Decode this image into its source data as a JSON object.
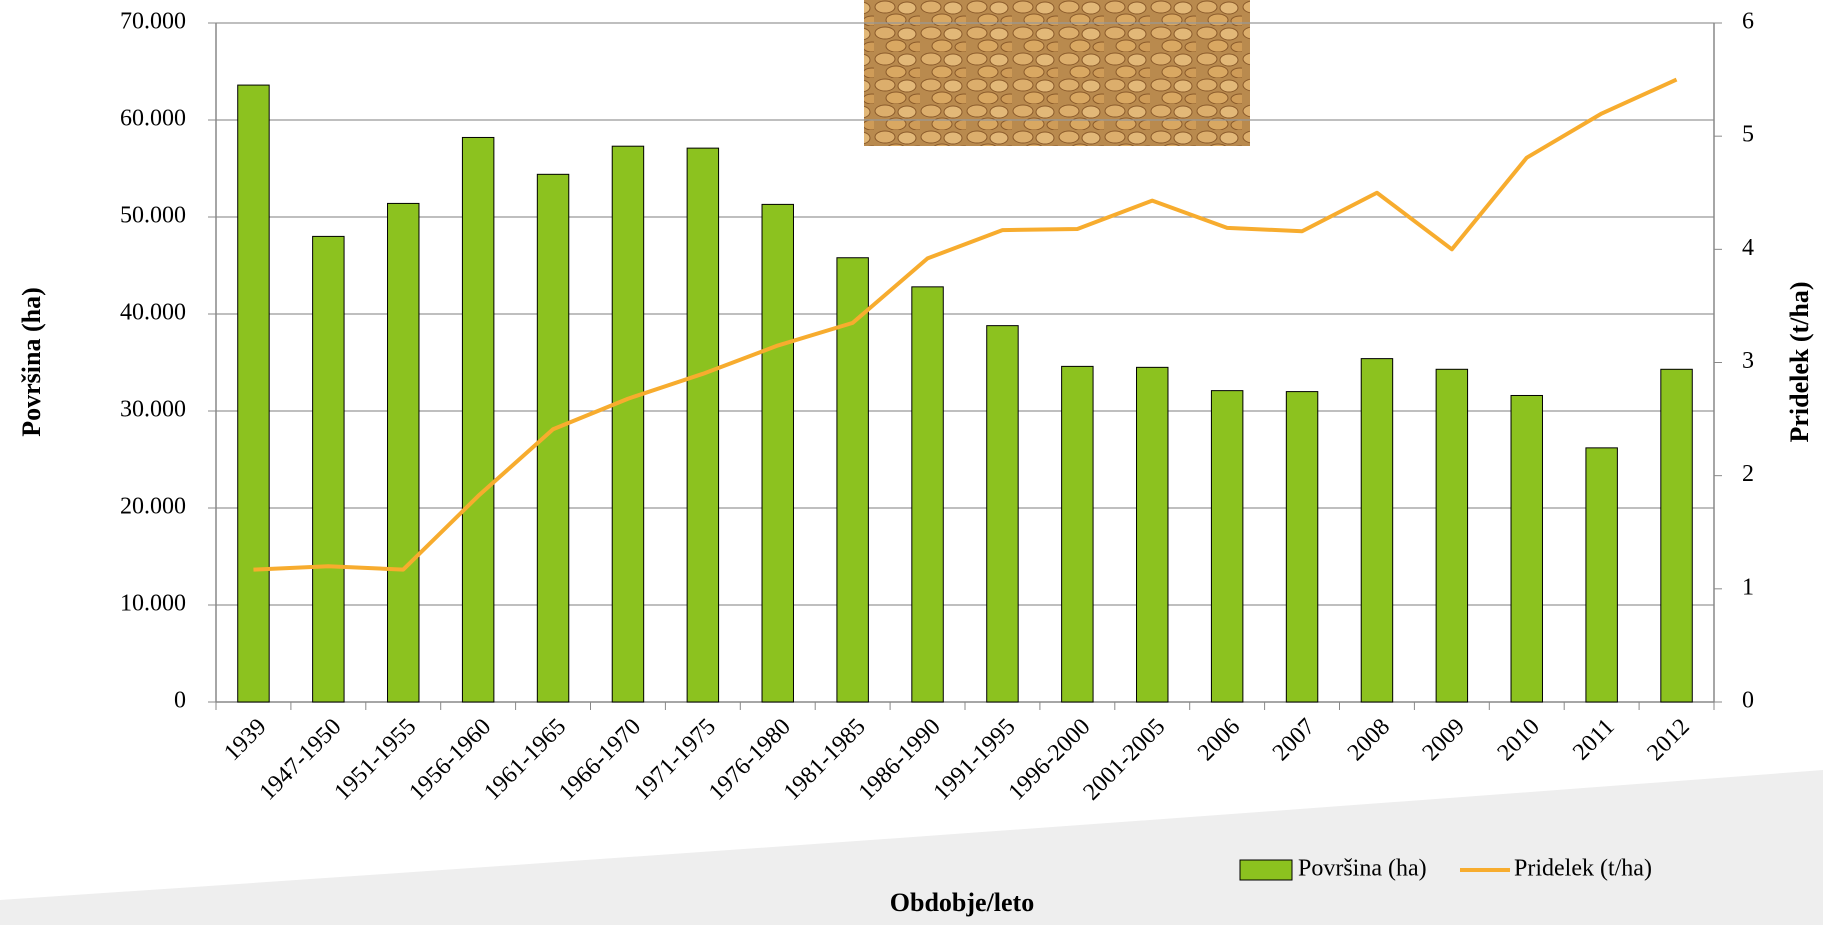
{
  "chart_data": {
    "type": "bar-line",
    "x_label": "Obdobje/leto",
    "y_label": "Površina (ha)",
    "y2_label": "Pridelek (t/ha)",
    "categories": [
      "1939",
      "1947-1950",
      "1951-1955",
      "1956-1960",
      "1961-1965",
      "1966-1970",
      "1971-1975",
      "1976-1980",
      "1981-1985",
      "1986-1990",
      "1991-1995",
      "1996-2000",
      "2001-2005",
      "2006",
      "2007",
      "2008",
      "2009",
      "2010",
      "2011",
      "2012"
    ],
    "series": [
      {
        "name": "Površina (ha)",
        "type": "bar",
        "color": "#8cc21f",
        "values": [
          63600,
          48000,
          51400,
          58200,
          54400,
          57300,
          57100,
          51300,
          45800,
          42800,
          38800,
          34600,
          34500,
          32100,
          32000,
          35400,
          34300,
          31600,
          26200,
          34300
        ]
      },
      {
        "name": "Pridelek (t/ha)",
        "type": "line",
        "axis": "y2",
        "color": "#f7ac2e",
        "values": [
          1.17,
          1.2,
          1.17,
          1.82,
          2.41,
          2.68,
          2.9,
          3.15,
          3.35,
          3.92,
          4.17,
          4.18,
          4.43,
          4.19,
          4.16,
          4.5,
          4.0,
          4.81,
          5.2,
          5.5
        ]
      }
    ],
    "ylim": [
      0,
      70000
    ],
    "yticks": [
      {
        "value": 0,
        "label": "0"
      },
      {
        "value": 10000,
        "label": "10.000"
      },
      {
        "value": 20000,
        "label": "20.000"
      },
      {
        "value": 30000,
        "label": "30.000"
      },
      {
        "value": 40000,
        "label": "40.000"
      },
      {
        "value": 50000,
        "label": "50.000"
      },
      {
        "value": 60000,
        "label": "60.000"
      },
      {
        "value": 70000,
        "label": "70.000"
      }
    ],
    "y2lim": [
      0,
      6
    ],
    "y2ticks": [
      0,
      1,
      2,
      3,
      4,
      5,
      6
    ],
    "grid": true,
    "legend": "bottom-right"
  }
}
